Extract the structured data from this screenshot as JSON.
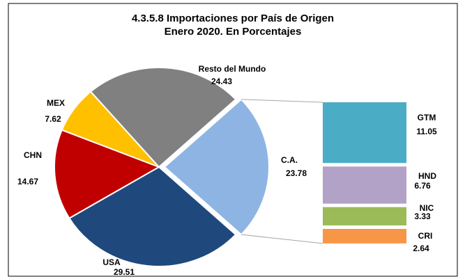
{
  "chart_data": {
    "type": "pie",
    "title": "4.3.5.8 Importaciones por País de Origen",
    "subtitle": "Enero 2020. En Porcentajes",
    "categories": [
      "C.A.",
      "USA",
      "CHN",
      "MEX",
      "Resto del Mundo"
    ],
    "values": [
      23.78,
      29.51,
      14.67,
      7.62,
      24.43
    ],
    "colors": [
      "#8eb4e3",
      "#1f497d",
      "#c00000",
      "#ffc000",
      "#808080"
    ],
    "breakdown": {
      "categories": [
        "GTM",
        "HND",
        "NIC",
        "CRI"
      ],
      "values": [
        11.05,
        6.76,
        3.33,
        2.64
      ],
      "colors": [
        "#4bacc6",
        "#b3a2c7",
        "#9bbb59",
        "#f79646"
      ]
    }
  }
}
